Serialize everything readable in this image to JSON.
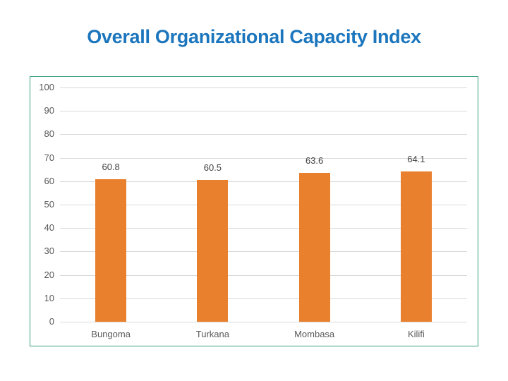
{
  "page": {
    "title": "Overall Organizational Capacity Index"
  },
  "colors": {
    "title_text": "#1C76BD",
    "bar_fill": "#E8802D",
    "chart_border": "#379F7B",
    "gridline": "#D9D9D9",
    "axis_label_text": "#595959",
    "value_label_text": "#404040",
    "background": "#FFFFFF"
  },
  "chart_data": {
    "type": "bar",
    "title": "Overall Organizational Capacity Index",
    "categories": [
      "Bungoma",
      "Turkana",
      "Mombasa",
      "Kilifi"
    ],
    "values": [
      60.8,
      60.5,
      63.6,
      64.1
    ],
    "value_labels": [
      "60.8",
      "60.5",
      "63.6",
      "64.1"
    ],
    "xlabel": "",
    "ylabel": "",
    "ylim": [
      0,
      100
    ],
    "yticks": [
      0,
      10,
      20,
      30,
      40,
      50,
      60,
      70,
      80,
      90,
      100
    ],
    "grid": true,
    "legend": false,
    "bar_color": "#E8802D"
  }
}
